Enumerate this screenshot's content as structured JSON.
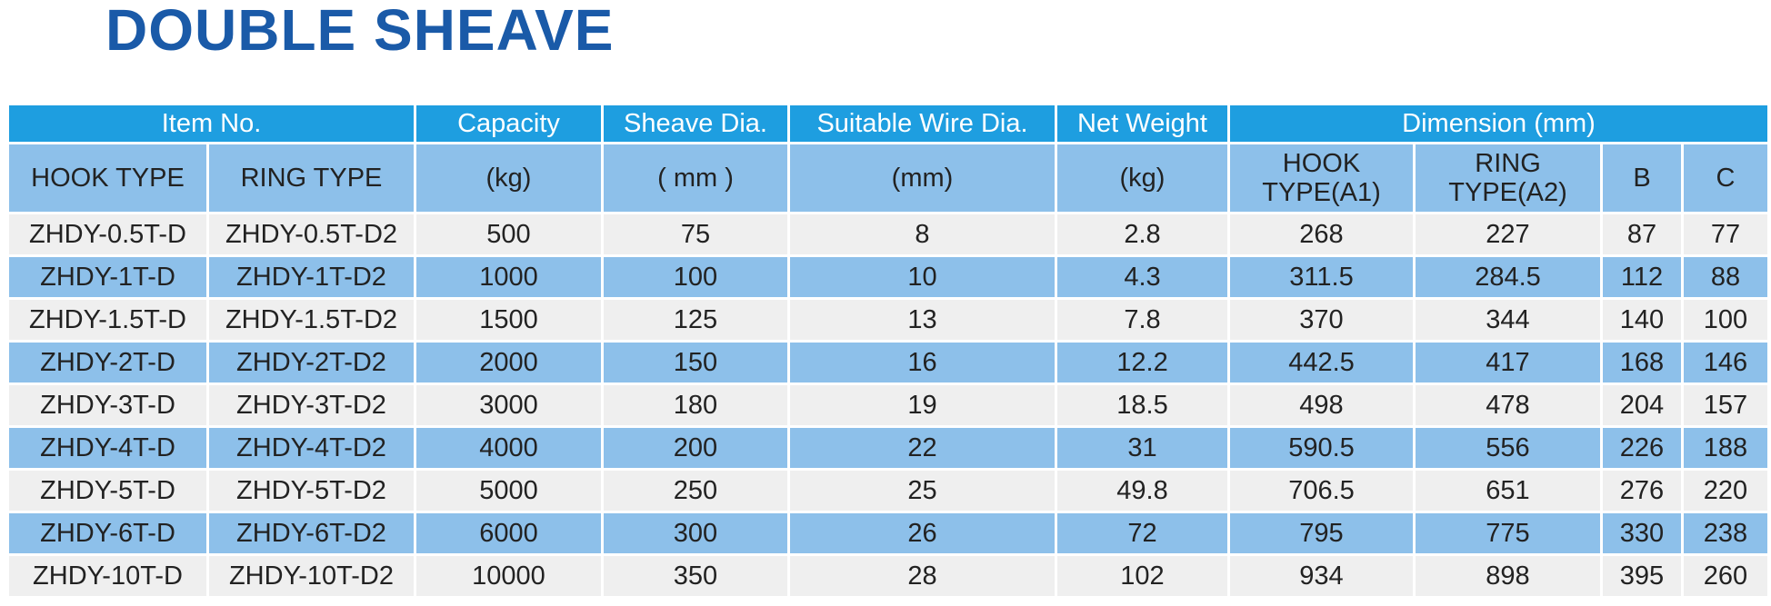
{
  "title": "DOUBLE SHEAVE",
  "table": {
    "header_top": [
      "Item No.",
      "Capacity",
      "Sheave Dia.",
      "Suitable Wire Dia.",
      "Net Weight",
      "Dimension (mm)"
    ],
    "header_sub": [
      "HOOK TYPE",
      "RING TYPE",
      "(kg)",
      "( mm )",
      "(mm)",
      "(kg)",
      "HOOK TYPE(A1)",
      "RING TYPE(A2)",
      "B",
      "C"
    ],
    "rows": [
      [
        "ZHDY-0.5T-D",
        "ZHDY-0.5T-D2",
        500,
        75,
        8,
        2.8,
        268,
        227,
        87,
        77
      ],
      [
        "ZHDY-1T-D",
        "ZHDY-1T-D2",
        1000,
        100,
        10,
        4.3,
        311.5,
        284.5,
        112,
        88
      ],
      [
        "ZHDY-1.5T-D",
        "ZHDY-1.5T-D2",
        1500,
        125,
        13,
        7.8,
        370,
        344,
        140,
        100
      ],
      [
        "ZHDY-2T-D",
        "ZHDY-2T-D2",
        2000,
        150,
        16,
        12.2,
        442.5,
        417,
        168,
        146
      ],
      [
        "ZHDY-3T-D",
        "ZHDY-3T-D2",
        3000,
        180,
        19,
        18.5,
        498,
        478,
        204,
        157
      ],
      [
        "ZHDY-4T-D",
        "ZHDY-4T-D2",
        4000,
        200,
        22,
        31,
        590.5,
        556,
        226,
        188
      ],
      [
        "ZHDY-5T-D",
        "ZHDY-5T-D2",
        5000,
        250,
        25,
        49.8,
        706.5,
        651,
        276,
        220
      ],
      [
        "ZHDY-6T-D",
        "ZHDY-6T-D2",
        6000,
        300,
        26,
        72,
        795,
        775,
        330,
        238
      ],
      [
        "ZHDY-10T-D",
        "ZHDY-10T-D2",
        10000,
        350,
        28,
        102,
        934,
        898,
        395,
        260
      ]
    ]
  }
}
